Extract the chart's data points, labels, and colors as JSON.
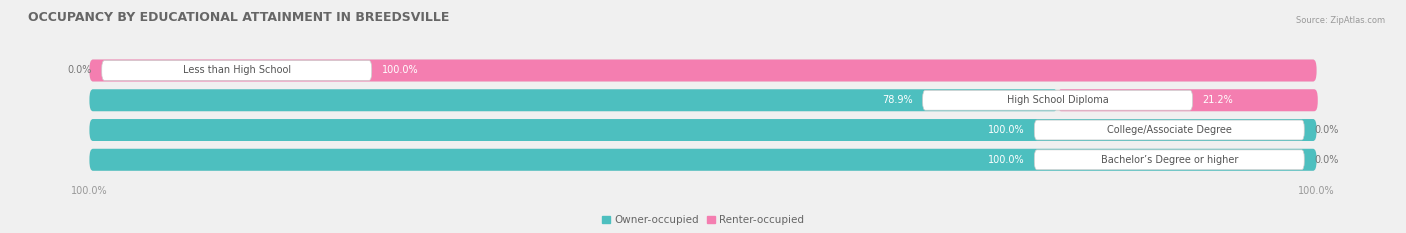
{
  "title": "OCCUPANCY BY EDUCATIONAL ATTAINMENT IN BREEDSVILLE",
  "source": "Source: ZipAtlas.com",
  "categories": [
    "Less than High School",
    "High School Diploma",
    "College/Associate Degree",
    "Bachelor’s Degree or higher"
  ],
  "owner_values": [
    0.0,
    78.9,
    100.0,
    100.0
  ],
  "renter_values": [
    100.0,
    21.2,
    0.0,
    0.0
  ],
  "owner_color": "#4dbfbf",
  "renter_color": "#f47eb0",
  "bg_color": "#f0f0f0",
  "bar_bg_color": "#e0e0e0",
  "title_fontsize": 9,
  "label_fontsize": 7.5,
  "tick_fontsize": 7,
  "legend_fontsize": 7.5
}
